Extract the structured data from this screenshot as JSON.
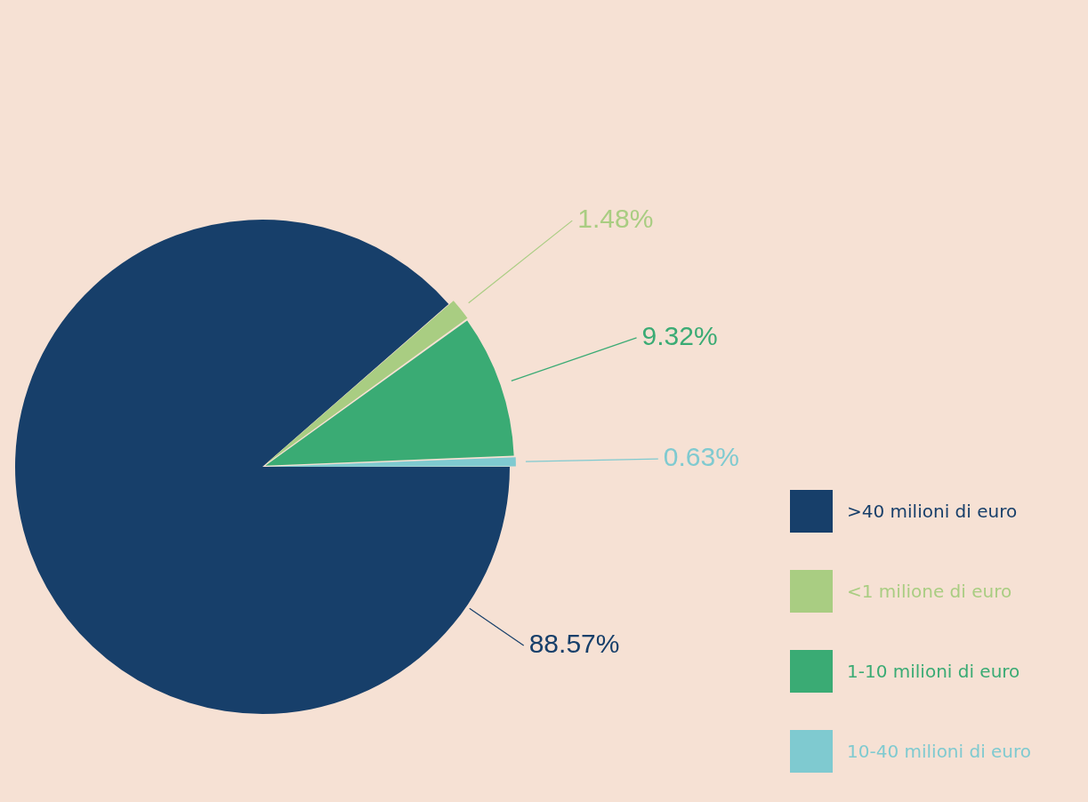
{
  "chart_data": {
    "type": "pie",
    "categories": [
      ">40 milioni di euro",
      "<1 milione di euro",
      "1-10 milioni di euro",
      "10-40 milioni di euro"
    ],
    "values": [
      88.57,
      1.48,
      9.32,
      0.63
    ],
    "value_labels": [
      "88.57%",
      "1.48%",
      "9.32%",
      "0.63%"
    ],
    "colors": [
      "#173f6a",
      "#a9cd82",
      "#3aab74",
      "#7fcad0"
    ],
    "legend": "lower right",
    "data_labels": true
  }
}
